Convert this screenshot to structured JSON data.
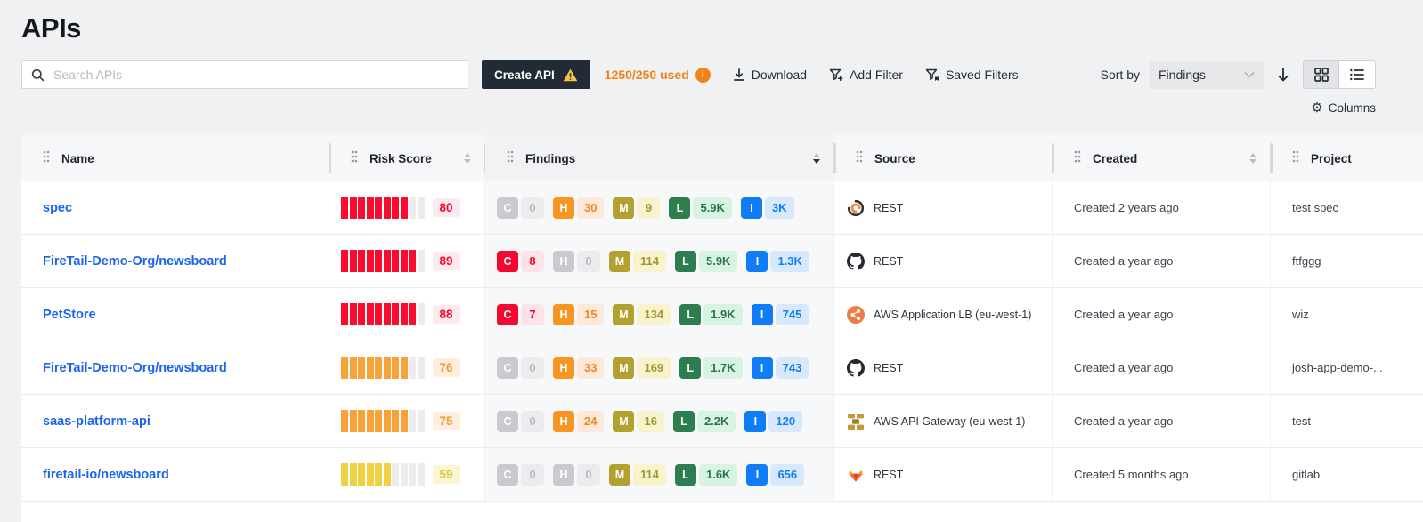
{
  "page": {
    "title": "APIs"
  },
  "toolbar": {
    "search_placeholder": "Search APIs",
    "create_button": "Create API",
    "usage": "1250/250 used",
    "download": "Download",
    "add_filter": "Add Filter",
    "saved_filters": "Saved Filters",
    "sort_by_label": "Sort by",
    "sort_value": "Findings",
    "sort_direction": "descending",
    "view_mode": "grid",
    "columns_button": "Columns",
    "icons": [
      "search-icon",
      "warning-icon",
      "info-icon",
      "download-icon",
      "add-filter-icon",
      "saved-filters-icon",
      "chevron-down-icon",
      "arrow-down-icon",
      "grid-view-icon",
      "list-view-icon",
      "gear-icon"
    ]
  },
  "colors": {
    "accent_orange": "#f08419",
    "link_blue": "#1b63f2",
    "create_button_bg": "#222a35",
    "critical": "#f5082f",
    "high": "#f89522",
    "medium": "#b2a02f",
    "low": "#2e7d4f",
    "info": "#0f7df5",
    "risk_red": "#fa0b30",
    "risk_orange": "#f9a23a",
    "risk_yellow": "#efd244"
  },
  "table": {
    "columns": [
      {
        "label": "Name",
        "sortable": false
      },
      {
        "label": "Risk Score",
        "sortable": true,
        "sorted": null
      },
      {
        "label": "Findings",
        "sortable": true,
        "sorted": "desc"
      },
      {
        "label": "Source",
        "sortable": false
      },
      {
        "label": "Created",
        "sortable": true,
        "sorted": null
      },
      {
        "label": "Project",
        "sortable": false
      }
    ],
    "severity_legend": {
      "C": "critical",
      "H": "high",
      "M": "medium",
      "L": "low",
      "I": "info"
    },
    "rows": [
      {
        "name": "spec",
        "risk_score": 80,
        "risk_level": "red",
        "risk_segments": 8,
        "findings": [
          {
            "severity": "C",
            "count": "0",
            "active": false
          },
          {
            "severity": "H",
            "count": "30",
            "active": true
          },
          {
            "severity": "M",
            "count": "9",
            "active": true
          },
          {
            "severity": "L",
            "count": "5.9K",
            "active": true
          },
          {
            "severity": "I",
            "count": "3K",
            "active": true
          }
        ],
        "source": {
          "icon": "openapi-swirl",
          "label": "REST"
        },
        "created": "Created 2 years ago",
        "project": "test spec"
      },
      {
        "name": "FireTail-Demo-Org/newsboard",
        "risk_score": 89,
        "risk_level": "red",
        "risk_segments": 9,
        "findings": [
          {
            "severity": "C",
            "count": "8",
            "active": true
          },
          {
            "severity": "H",
            "count": "0",
            "active": false
          },
          {
            "severity": "M",
            "count": "114",
            "active": true
          },
          {
            "severity": "L",
            "count": "5.9K",
            "active": true
          },
          {
            "severity": "I",
            "count": "1.3K",
            "active": true
          }
        ],
        "source": {
          "icon": "github",
          "label": "REST"
        },
        "created": "Created a year ago",
        "project": "ftfggg"
      },
      {
        "name": "PetStore",
        "risk_score": 88,
        "risk_level": "red",
        "risk_segments": 9,
        "findings": [
          {
            "severity": "C",
            "count": "7",
            "active": true
          },
          {
            "severity": "H",
            "count": "15",
            "active": true
          },
          {
            "severity": "M",
            "count": "134",
            "active": true
          },
          {
            "severity": "L",
            "count": "1.9K",
            "active": true
          },
          {
            "severity": "I",
            "count": "745",
            "active": true
          }
        ],
        "source": {
          "icon": "aws-alb",
          "label": "AWS Application LB (eu-west-1)"
        },
        "created": "Created a year ago",
        "project": "wiz"
      },
      {
        "name": "FireTail-Demo-Org/newsboard",
        "risk_score": 76,
        "risk_level": "orange",
        "risk_segments": 8,
        "findings": [
          {
            "severity": "C",
            "count": "0",
            "active": false
          },
          {
            "severity": "H",
            "count": "33",
            "active": true
          },
          {
            "severity": "M",
            "count": "169",
            "active": true
          },
          {
            "severity": "L",
            "count": "1.7K",
            "active": true
          },
          {
            "severity": "I",
            "count": "743",
            "active": true
          }
        ],
        "source": {
          "icon": "github",
          "label": "REST"
        },
        "created": "Created a year ago",
        "project": "josh-app-demo-..."
      },
      {
        "name": "saas-platform-api",
        "risk_score": 75,
        "risk_level": "orange",
        "risk_segments": 8,
        "findings": [
          {
            "severity": "C",
            "count": "0",
            "active": false
          },
          {
            "severity": "H",
            "count": "24",
            "active": true
          },
          {
            "severity": "M",
            "count": "16",
            "active": true
          },
          {
            "severity": "L",
            "count": "2.2K",
            "active": true
          },
          {
            "severity": "I",
            "count": "120",
            "active": true
          }
        ],
        "source": {
          "icon": "aws-api-gateway",
          "label": "AWS API Gateway (eu-west-1)"
        },
        "created": "Created a year ago",
        "project": "test"
      },
      {
        "name": "firetail-io/newsboard",
        "risk_score": 59,
        "risk_level": "yellow",
        "risk_segments": 6,
        "findings": [
          {
            "severity": "C",
            "count": "0",
            "active": false
          },
          {
            "severity": "H",
            "count": "0",
            "active": false
          },
          {
            "severity": "M",
            "count": "114",
            "active": true
          },
          {
            "severity": "L",
            "count": "1.6K",
            "active": true
          },
          {
            "severity": "I",
            "count": "656",
            "active": true
          }
        ],
        "source": {
          "icon": "gitlab",
          "label": "REST"
        },
        "created": "Created 5 months ago",
        "project": "gitlab"
      }
    ]
  }
}
